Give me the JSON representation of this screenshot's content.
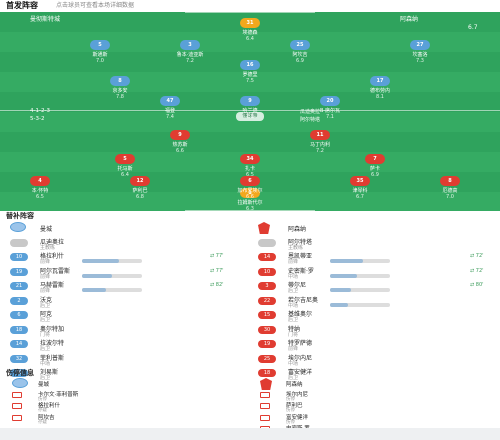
{
  "header": {
    "title": "首发阵容",
    "subtitle": "点击球员可查看本场详细数据"
  },
  "pitch": {
    "home_name": "曼彻斯特城",
    "away_name": "阿森纳",
    "top_right_score": "6.7",
    "mid_label": "懂球帝",
    "home_formation": "4-1-2-3",
    "away_formation": "5-3-2",
    "home_coach": "瓜迪奥拉",
    "away_coach": "阿尔特塔",
    "away_players": [
      {
        "num": "31",
        "name": "埃德森",
        "rating": "6.4",
        "kit": "gold"
      },
      {
        "num": "5",
        "name": "斯通斯",
        "rating": "7.0"
      },
      {
        "num": "3",
        "name": "鲁本·迪亚斯",
        "rating": "7.2"
      },
      {
        "num": "25",
        "name": "阿坎吉",
        "rating": "6.9"
      },
      {
        "num": "27",
        "name": "坎塞洛",
        "rating": "7.3"
      },
      {
        "num": "16",
        "name": "罗德里",
        "rating": "7.5"
      },
      {
        "num": "8",
        "name": "京多安",
        "rating": "7.8"
      },
      {
        "num": "17",
        "name": "德布劳内",
        "rating": "8.1"
      },
      {
        "num": "47",
        "name": "福登",
        "rating": "7.4"
      },
      {
        "num": "9",
        "name": "哈兰德",
        "rating": "7.9"
      },
      {
        "num": "20",
        "name": "B·席尔瓦",
        "rating": "7.1"
      }
    ],
    "home_players": [
      {
        "num": "1",
        "name": "拉姆斯代尔",
        "rating": "6.3",
        "kit": "gold"
      },
      {
        "num": "4",
        "name": "本·怀特",
        "rating": "6.5"
      },
      {
        "num": "12",
        "name": "萨利巴",
        "rating": "6.8"
      },
      {
        "num": "6",
        "name": "加布里埃尔",
        "rating": "6.6"
      },
      {
        "num": "35",
        "name": "津琴科",
        "rating": "6.7"
      },
      {
        "num": "8",
        "name": "厄德高",
        "rating": "7.0"
      },
      {
        "num": "5",
        "name": "托马斯",
        "rating": "6.4"
      },
      {
        "num": "34",
        "name": "扎卡",
        "rating": "6.5"
      },
      {
        "num": "7",
        "name": "萨卡",
        "rating": "6.9"
      },
      {
        "num": "9",
        "name": "热苏斯",
        "rating": "6.6"
      },
      {
        "num": "11",
        "name": "马丁内利",
        "rating": "7.2"
      }
    ]
  },
  "subs": {
    "title": "替补阵容",
    "left": [
      {
        "club": "曼城",
        "isclub": true
      },
      {
        "num": "",
        "name": "瓜迪奥拉",
        "pos": "主教练"
      },
      {
        "num": "10",
        "name": "格拉利什",
        "pos": "前锋",
        "bar": 0.62,
        "tag": "77'"
      },
      {
        "num": "19",
        "name": "阿尔瓦雷斯",
        "pos": "前锋",
        "bar": 0.5,
        "tag": "77'"
      },
      {
        "num": "21",
        "name": "马赫雷斯",
        "pos": "前锋",
        "bar": 0.4,
        "tag": "82'"
      },
      {
        "num": "2",
        "name": "沃克",
        "pos": "后卫"
      },
      {
        "num": "6",
        "name": "阿克",
        "pos": "后卫"
      },
      {
        "num": "18",
        "name": "奥尔特加",
        "pos": "门将"
      },
      {
        "num": "14",
        "name": "拉波尔特",
        "pos": "后卫"
      },
      {
        "num": "32",
        "name": "菲利普斯",
        "pos": "中场"
      },
      {
        "num": "80",
        "name": "刘易斯",
        "pos": "后卫"
      }
    ],
    "right": [
      {
        "club": "阿森纳",
        "isclub": true
      },
      {
        "num": "",
        "name": "阿尔特塔",
        "pos": "主教练"
      },
      {
        "num": "14",
        "name": "恩凯蒂亚",
        "pos": "前锋",
        "bar": 0.55,
        "tag": "72'"
      },
      {
        "num": "10",
        "name": "史密斯·罗",
        "pos": "中场",
        "bar": 0.45,
        "tag": "72'"
      },
      {
        "num": "3",
        "name": "蒂尔尼",
        "pos": "后卫",
        "bar": 0.35,
        "tag": "80'"
      },
      {
        "num": "22",
        "name": "若尔吉尼奥",
        "pos": "中场",
        "bar": 0.3
      },
      {
        "num": "15",
        "name": "基维奥尔",
        "pos": "后卫"
      },
      {
        "num": "30",
        "name": "特纳",
        "pos": "门将"
      },
      {
        "num": "19",
        "name": "特罗萨德",
        "pos": "前锋"
      },
      {
        "num": "25",
        "name": "埃尔内尼",
        "pos": "中场"
      },
      {
        "num": "18",
        "name": "富安健洋",
        "pos": "后卫"
      }
    ]
  },
  "injuries": {
    "title": "伤停信息",
    "left": [
      {
        "club": "曼城",
        "isclub": true
      },
      {
        "name": "卡尔文·菲利普斯",
        "pos": "伤停"
      },
      {
        "name": "格拉利什",
        "pos": "存疑"
      },
      {
        "name": "阿坎吉",
        "pos": "存疑"
      }
    ],
    "right": [
      {
        "club": "阿森纳",
        "isclub": true
      },
      {
        "name": "埃尔内尼",
        "pos": "伤停"
      },
      {
        "name": "萨利巴",
        "pos": "伤停"
      },
      {
        "name": "富安健洋",
        "pos": "伤停"
      },
      {
        "name": "史密斯·罗",
        "pos": "存疑"
      }
    ]
  },
  "colors": {
    "pitch": "#2fa35d",
    "man_city": "#5aa0d8",
    "arsenal": "#e03c31",
    "goalkeeper": "#f2a81d"
  }
}
